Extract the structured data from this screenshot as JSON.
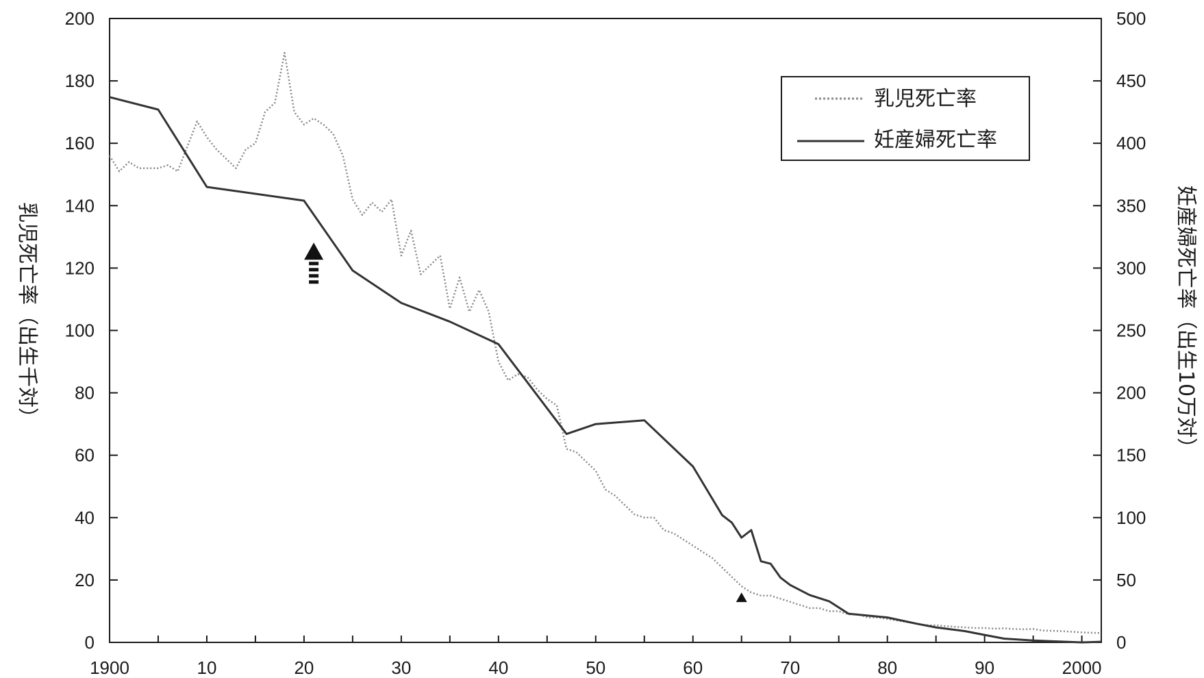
{
  "chart_data": {
    "type": "line",
    "title": "",
    "xlabel": "",
    "ylabel_left": "乳児死亡率（出生千対）",
    "ylabel_right": "妊産婦死亡率（出生10万対）",
    "xlim": [
      1900,
      2002
    ],
    "ylim_left": [
      0,
      200
    ],
    "ylim_right": [
      0,
      500
    ],
    "x_ticks": [
      1900,
      1910,
      1920,
      1930,
      1940,
      1950,
      1960,
      1970,
      1980,
      1990,
      2000
    ],
    "x_tick_labels": [
      "1900",
      "10",
      "20",
      "30",
      "40",
      "50",
      "60",
      "70",
      "80",
      "90",
      "2000"
    ],
    "y_left_ticks": [
      0,
      20,
      40,
      60,
      80,
      100,
      120,
      140,
      160,
      180,
      200
    ],
    "y_right_ticks": [
      0,
      50,
      100,
      150,
      200,
      250,
      300,
      350,
      400,
      450,
      500
    ],
    "grid": false,
    "legend": {
      "position": "top-right",
      "entries": [
        "乳児死亡率",
        "妊産婦死亡率"
      ]
    },
    "series": [
      {
        "name": "乳児死亡率",
        "axis": "left",
        "style": "dotted",
        "color": "#888888",
        "points": [
          [
            1900,
            156
          ],
          [
            1901,
            151
          ],
          [
            1902,
            154
          ],
          [
            1903,
            152
          ],
          [
            1904,
            152
          ],
          [
            1905,
            152
          ],
          [
            1906,
            153
          ],
          [
            1907,
            151
          ],
          [
            1908,
            159
          ],
          [
            1909,
            167
          ],
          [
            1910,
            162
          ],
          [
            1911,
            158
          ],
          [
            1912,
            155
          ],
          [
            1913,
            152
          ],
          [
            1914,
            158
          ],
          [
            1915,
            160
          ],
          [
            1916,
            170
          ],
          [
            1917,
            173
          ],
          [
            1918,
            189
          ],
          [
            1919,
            170
          ],
          [
            1920,
            166
          ],
          [
            1921,
            168
          ],
          [
            1922,
            166
          ],
          [
            1923,
            163
          ],
          [
            1924,
            156
          ],
          [
            1925,
            142
          ],
          [
            1926,
            137
          ],
          [
            1927,
            141
          ],
          [
            1928,
            138
          ],
          [
            1929,
            142
          ],
          [
            1930,
            124
          ],
          [
            1931,
            132
          ],
          [
            1932,
            118
          ],
          [
            1933,
            121
          ],
          [
            1934,
            124
          ],
          [
            1935,
            107
          ],
          [
            1936,
            117
          ],
          [
            1937,
            106
          ],
          [
            1938,
            113
          ],
          [
            1939,
            106
          ],
          [
            1940,
            90
          ],
          [
            1941,
            84
          ],
          [
            1942,
            86
          ],
          [
            1943,
            85
          ],
          [
            1944,
            81
          ],
          [
            1945,
            78
          ],
          [
            1946,
            76
          ],
          [
            1947,
            62
          ],
          [
            1948,
            61
          ],
          [
            1949,
            58
          ],
          [
            1950,
            55
          ],
          [
            1951,
            49
          ],
          [
            1952,
            47
          ],
          [
            1953,
            44
          ],
          [
            1954,
            41
          ],
          [
            1955,
            40
          ],
          [
            1956,
            40
          ],
          [
            1957,
            36
          ],
          [
            1958,
            35
          ],
          [
            1959,
            33
          ],
          [
            1960,
            31
          ],
          [
            1961,
            29
          ],
          [
            1962,
            27
          ],
          [
            1963,
            24
          ],
          [
            1964,
            21
          ],
          [
            1965,
            18
          ],
          [
            1966,
            16
          ],
          [
            1967,
            15
          ],
          [
            1968,
            15
          ],
          [
            1969,
            14
          ],
          [
            1970,
            13
          ],
          [
            1971,
            12
          ],
          [
            1972,
            11
          ],
          [
            1973,
            11
          ],
          [
            1974,
            10
          ],
          [
            1975,
            10
          ],
          [
            1976,
            9
          ],
          [
            1977,
            9
          ],
          [
            1978,
            8
          ],
          [
            1979,
            8
          ],
          [
            1980,
            7.5
          ],
          [
            1981,
            7
          ],
          [
            1982,
            6.5
          ],
          [
            1983,
            6
          ],
          [
            1984,
            5.5
          ],
          [
            1985,
            5.5
          ],
          [
            1986,
            5.2
          ],
          [
            1987,
            5
          ],
          [
            1988,
            4.8
          ],
          [
            1989,
            4.6
          ],
          [
            1990,
            4.6
          ],
          [
            1991,
            4.4
          ],
          [
            1992,
            4.5
          ],
          [
            1993,
            4.3
          ],
          [
            1994,
            4.2
          ],
          [
            1995,
            4.3
          ],
          [
            1996,
            3.8
          ],
          [
            1997,
            3.7
          ],
          [
            1998,
            3.6
          ],
          [
            1999,
            3.4
          ],
          [
            2000,
            3.2
          ],
          [
            2001,
            3.1
          ],
          [
            2002,
            3.0
          ]
        ]
      },
      {
        "name": "妊産婦死亡率",
        "axis": "right",
        "style": "solid",
        "color": "#333333",
        "points": [
          [
            1900,
            437
          ],
          [
            1905,
            427
          ],
          [
            1910,
            365
          ],
          [
            1920,
            354
          ],
          [
            1925,
            298
          ],
          [
            1930,
            272
          ],
          [
            1935,
            257
          ],
          [
            1940,
            239
          ],
          [
            1947,
            167
          ],
          [
            1950,
            175
          ],
          [
            1955,
            178
          ],
          [
            1960,
            141
          ],
          [
            1963,
            102
          ],
          [
            1964,
            96
          ],
          [
            1965,
            84
          ],
          [
            1966,
            90
          ],
          [
            1967,
            65
          ],
          [
            1968,
            63
          ],
          [
            1969,
            52
          ],
          [
            1970,
            46
          ],
          [
            1972,
            38
          ],
          [
            1974,
            33
          ],
          [
            1976,
            23
          ],
          [
            1980,
            20
          ],
          [
            1983,
            15
          ],
          [
            1985,
            12
          ],
          [
            1988,
            9
          ],
          [
            1990,
            6
          ],
          [
            1992,
            3
          ],
          [
            1995,
            1.5
          ],
          [
            2000,
            0
          ],
          [
            2002,
            0.5
          ]
        ]
      }
    ],
    "annotations": [
      {
        "type": "arrow",
        "x": 1921,
        "y_left": 122
      },
      {
        "type": "marker",
        "x": 1965,
        "y_left": 16
      }
    ]
  }
}
